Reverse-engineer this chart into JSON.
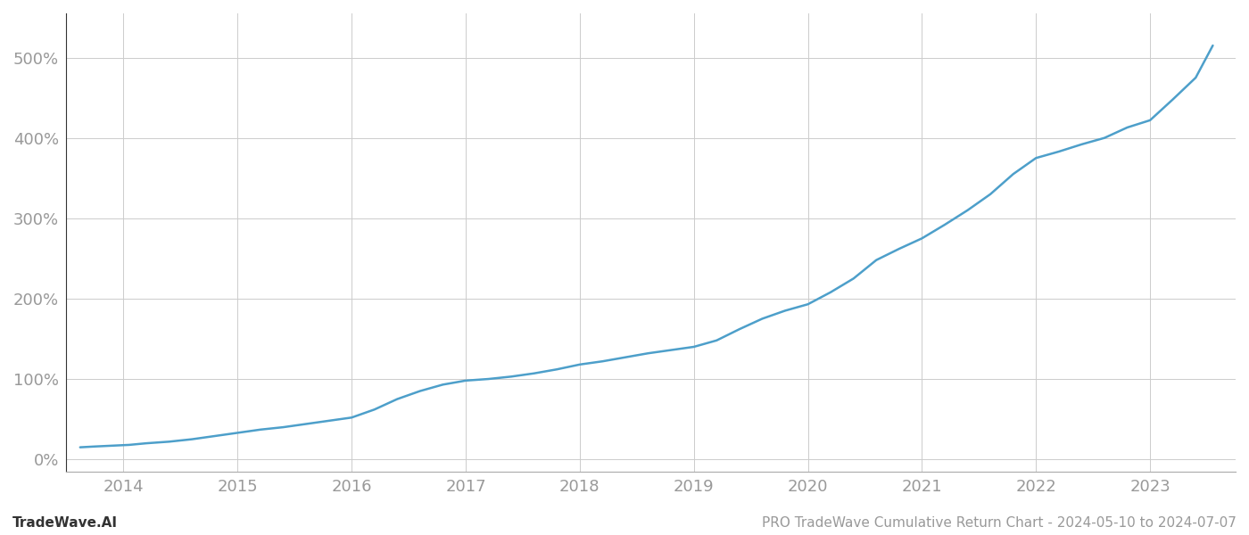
{
  "title_right": "PRO TradeWave Cumulative Return Chart - 2024-05-10 to 2024-07-07",
  "title_left": "TradeWave.AI",
  "line_color": "#4d9fca",
  "background_color": "#ffffff",
  "grid_color": "#cccccc",
  "x_values": [
    2013.62,
    2013.75,
    2013.9,
    2014.05,
    2014.2,
    2014.4,
    2014.6,
    2014.8,
    2015.0,
    2015.2,
    2015.4,
    2015.6,
    2015.8,
    2016.0,
    2016.2,
    2016.4,
    2016.6,
    2016.8,
    2017.0,
    2017.2,
    2017.4,
    2017.6,
    2017.8,
    2018.0,
    2018.2,
    2018.4,
    2018.6,
    2018.8,
    2019.0,
    2019.2,
    2019.4,
    2019.6,
    2019.8,
    2020.0,
    2020.2,
    2020.4,
    2020.6,
    2020.8,
    2021.0,
    2021.2,
    2021.4,
    2021.6,
    2021.8,
    2022.0,
    2022.2,
    2022.4,
    2022.6,
    2022.8,
    2023.0,
    2023.2,
    2023.4,
    2023.55
  ],
  "y_values": [
    15,
    16,
    17,
    18,
    20,
    22,
    25,
    29,
    33,
    37,
    40,
    44,
    48,
    52,
    62,
    75,
    85,
    93,
    98,
    100,
    103,
    107,
    112,
    118,
    122,
    127,
    132,
    136,
    140,
    148,
    162,
    175,
    185,
    193,
    208,
    225,
    248,
    262,
    275,
    292,
    310,
    330,
    355,
    375,
    383,
    392,
    400,
    413,
    422,
    448,
    475,
    515
  ],
  "xlim": [
    2013.5,
    2023.75
  ],
  "ylim": [
    -15,
    555
  ],
  "yticks": [
    0,
    100,
    200,
    300,
    400,
    500
  ],
  "xticks": [
    2014,
    2015,
    2016,
    2017,
    2018,
    2019,
    2020,
    2021,
    2022,
    2023
  ],
  "tick_label_color": "#999999",
  "tick_fontsize": 13,
  "footer_fontsize": 11,
  "line_width": 1.8,
  "spine_color": "#aaaaaa",
  "left_spine_color": "#333333"
}
